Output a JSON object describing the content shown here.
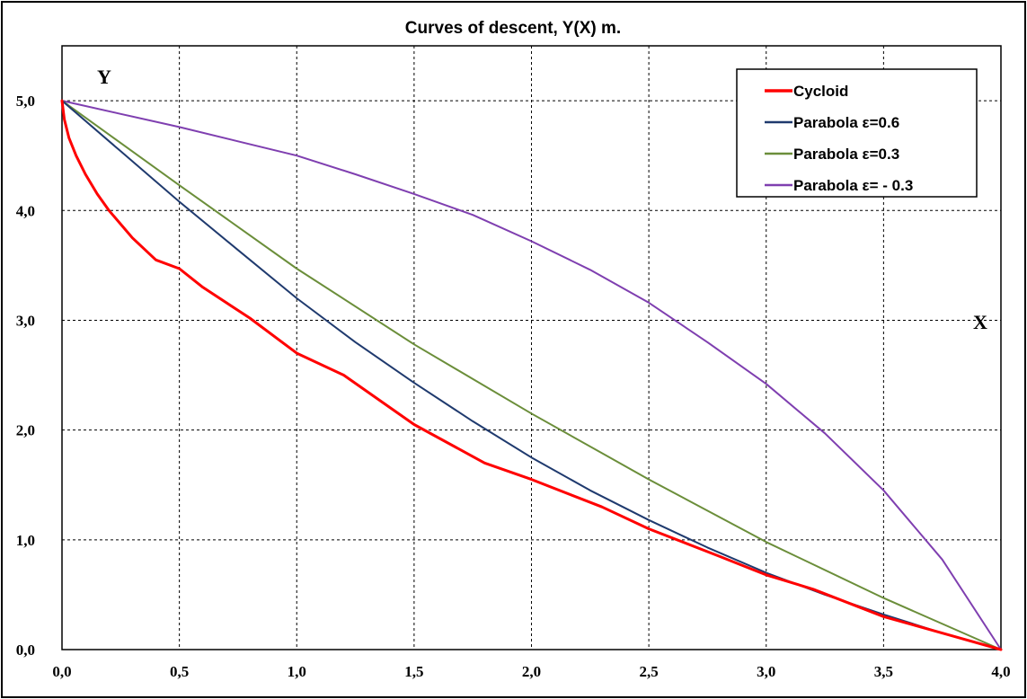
{
  "chart_data": {
    "type": "line",
    "title": "Curves of descent, Y(X) m.",
    "xlabel": "X",
    "ylabel": "Y",
    "xlim": [
      0,
      4
    ],
    "ylim": [
      0,
      5.5
    ],
    "xticks": [
      0,
      0.5,
      1,
      1.5,
      2,
      2.5,
      3,
      3.5,
      4
    ],
    "yticks": [
      0,
      1,
      2,
      3,
      4,
      5
    ],
    "xtick_labels": [
      "0,0",
      "0,5",
      "1,0",
      "1,5",
      "2,0",
      "2,5",
      "3,0",
      "3,5",
      "4,0"
    ],
    "ytick_labels": [
      "0,0",
      "1,0",
      "2,0",
      "3,0",
      "4,0",
      "5,0"
    ],
    "grid": true,
    "legend_position": "top-right",
    "series": [
      {
        "name": "Cycloid",
        "color": "#ff0000",
        "width": 3,
        "x": [
          0,
          0.01,
          0.03,
          0.06,
          0.1,
          0.15,
          0.2,
          0.3,
          0.4,
          0.5,
          0.6,
          0.8,
          1.0,
          1.2,
          1.5,
          1.8,
          2.0,
          2.3,
          2.5,
          2.8,
          3.0,
          3.2,
          3.5,
          3.8,
          4.0
        ],
        "y": [
          5.0,
          4.83,
          4.66,
          4.5,
          4.33,
          4.15,
          4.0,
          3.75,
          3.55,
          3.47,
          3.3,
          3.02,
          2.7,
          2.5,
          2.05,
          1.7,
          1.55,
          1.3,
          1.1,
          0.85,
          0.68,
          0.55,
          0.3,
          0.12,
          0.0
        ]
      },
      {
        "name": "Parabola ε=0.6",
        "color": "#1f3a6e",
        "width": 2,
        "x": [
          0,
          0.25,
          0.5,
          0.75,
          1.0,
          1.25,
          1.5,
          1.75,
          2.0,
          2.25,
          2.5,
          2.75,
          3.0,
          3.25,
          3.5,
          3.75,
          4.0
        ],
        "y": [
          5.0,
          4.54,
          4.08,
          3.64,
          3.2,
          2.8,
          2.43,
          2.08,
          1.75,
          1.45,
          1.18,
          0.93,
          0.7,
          0.5,
          0.32,
          0.15,
          0.0
        ]
      },
      {
        "name": "Parabola ε=0.3",
        "color": "#6b8e3a",
        "width": 2,
        "x": [
          0,
          0.5,
          1.0,
          1.5,
          2.0,
          2.5,
          3.0,
          3.5,
          4.0
        ],
        "y": [
          5.0,
          4.23,
          3.47,
          2.78,
          2.15,
          1.55,
          0.98,
          0.47,
          0.0
        ]
      },
      {
        "name": "Parabola ε= - 0.3",
        "color": "#7f3fb0",
        "width": 2,
        "x": [
          0,
          0.25,
          0.5,
          0.75,
          1.0,
          1.25,
          1.5,
          1.75,
          2.0,
          2.25,
          2.5,
          2.75,
          3.0,
          3.25,
          3.5,
          3.75,
          4.0
        ],
        "y": [
          5.0,
          4.88,
          4.76,
          4.63,
          4.5,
          4.33,
          4.15,
          3.96,
          3.72,
          3.46,
          3.16,
          2.8,
          2.42,
          1.97,
          1.45,
          0.82,
          0.0
        ]
      }
    ]
  }
}
